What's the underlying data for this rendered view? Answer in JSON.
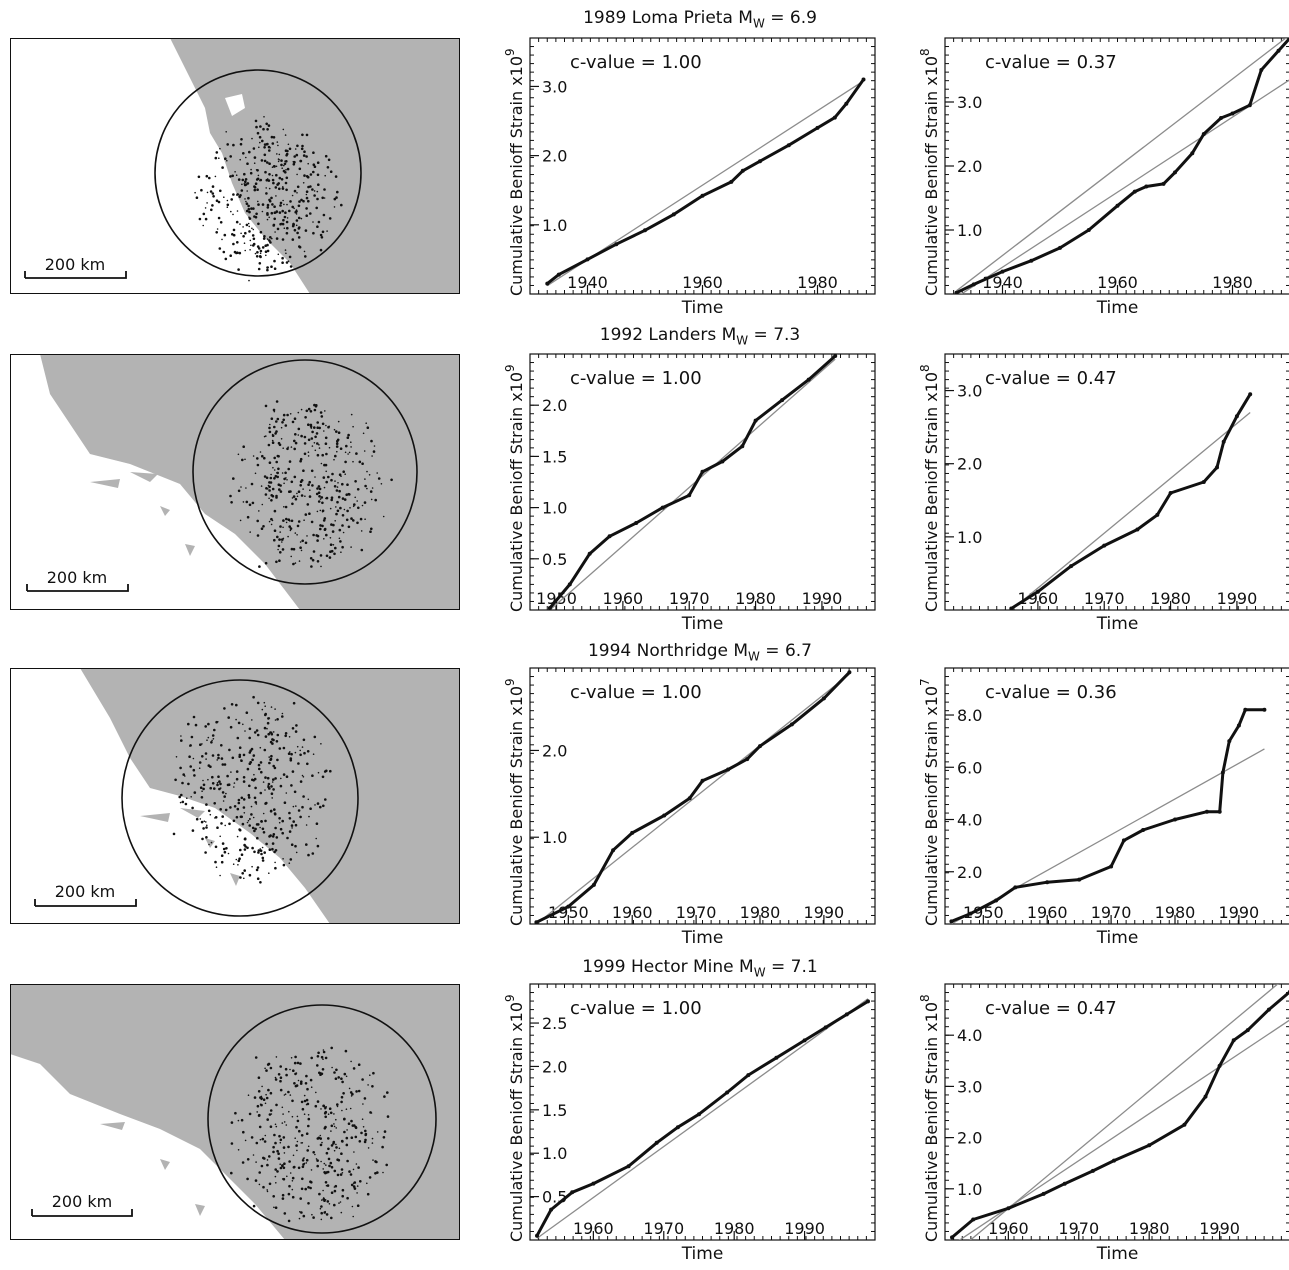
{
  "rows": [
    {
      "title_main": "1989 Loma Prieta M",
      "title_sub": "W",
      "title_tail": " = 6.9"
    },
    {
      "title_main": "1992 Landers M",
      "title_sub": "W",
      "title_tail": " = 7.3"
    },
    {
      "title_main": "1994 Northridge M",
      "title_sub": "W",
      "title_tail": " = 6.7"
    },
    {
      "title_main": "1999 Hector Mine M",
      "title_sub": "W",
      "title_tail": " = 7.1"
    }
  ],
  "scale_bar_label": "200 km",
  "colors": {
    "land": "#b3b3b3",
    "sea": "#ffffff",
    "data": "#111111",
    "fit": "#8c8c8c"
  },
  "chart_data": [
    {
      "type": "line",
      "row": 0,
      "title": "1989 Loma Prieta MW = 6.9",
      "annotation": "c-value = 1.00",
      "xlabel": "Time",
      "ylabel": "Cumulative Benioff Strain x10",
      "ylabel_exp": "9",
      "xlim": [
        1930,
        1990
      ],
      "ylim": [
        0,
        3.7
      ],
      "xticks": [
        1940,
        1960,
        1980
      ],
      "yticks": [
        1.0,
        2.0,
        3.0
      ],
      "series": [
        {
          "x": [
            1933,
            1935,
            1940,
            1945,
            1950,
            1955,
            1960,
            1965,
            1967,
            1970,
            1975,
            1980,
            1983,
            1985,
            1988
          ],
          "y": [
            0.15,
            0.28,
            0.5,
            0.72,
            0.92,
            1.15,
            1.42,
            1.62,
            1.78,
            1.92,
            2.15,
            2.4,
            2.55,
            2.75,
            3.1
          ]
        }
      ],
      "fit": {
        "x": [
          1933,
          1988
        ],
        "y": [
          0.12,
          3.08
        ]
      }
    },
    {
      "type": "line",
      "row": 0,
      "annotation": "c-value = 0.37",
      "xlabel": "Time",
      "ylabel": "Cumulative Benioff Strain x10",
      "ylabel_exp": "8",
      "xlim": [
        1930,
        1990
      ],
      "ylim": [
        0,
        4.0
      ],
      "xticks": [
        1940,
        1960,
        1980
      ],
      "yticks": [
        1.0,
        2.0,
        3.0
      ],
      "series": [
        {
          "x": [
            1932,
            1935,
            1940,
            1945,
            1950,
            1955,
            1960,
            1963,
            1965,
            1968,
            1970,
            1973,
            1975,
            1978,
            1980,
            1983,
            1985,
            1988,
            1990
          ],
          "y": [
            0.02,
            0.15,
            0.35,
            0.52,
            0.72,
            1.0,
            1.38,
            1.6,
            1.68,
            1.72,
            1.9,
            2.2,
            2.5,
            2.75,
            2.82,
            2.95,
            3.5,
            3.8,
            4.0
          ]
        }
      ],
      "fit": {
        "x": [
          1932,
          1990
        ],
        "y": [
          -0.05,
          3.35
        ]
      },
      "fit2": {
        "x": [
          1932,
          1990
        ],
        "y": [
          0.05,
          4.05
        ]
      }
    },
    {
      "type": "line",
      "row": 1,
      "title": "1992 Landers MW = 7.3",
      "annotation": "c-value = 1.00",
      "xlabel": "Time",
      "ylabel": "Cumulative Benioff Strain x10",
      "ylabel_exp": "9",
      "xlim": [
        1946,
        1998
      ],
      "ylim": [
        0,
        2.5
      ],
      "xticks": [
        1950,
        1960,
        1970,
        1980,
        1990
      ],
      "yticks": [
        0.5,
        1.0,
        1.5,
        2.0
      ],
      "series": [
        {
          "x": [
            1949,
            1952,
            1955,
            1958,
            1962,
            1966,
            1970,
            1972,
            1975,
            1978,
            1980,
            1984,
            1988,
            1992
          ],
          "y": [
            0.02,
            0.25,
            0.55,
            0.72,
            0.85,
            1.0,
            1.12,
            1.35,
            1.45,
            1.6,
            1.85,
            2.05,
            2.25,
            2.48
          ]
        }
      ],
      "fit": {
        "x": [
          1949,
          1992
        ],
        "y": [
          0.0,
          2.45
        ]
      }
    },
    {
      "type": "line",
      "row": 1,
      "annotation": "c-value = 0.47",
      "xlabel": "Time",
      "ylabel": "Cumulative Benioff Strain x10",
      "ylabel_exp": "8",
      "xlim": [
        1946,
        1998
      ],
      "ylim": [
        0,
        3.5
      ],
      "xticks": [
        1960,
        1970,
        1980,
        1990
      ],
      "yticks": [
        1.0,
        2.0,
        3.0
      ],
      "series": [
        {
          "x": [
            1956,
            1960,
            1965,
            1970,
            1975,
            1978,
            1980,
            1985,
            1987,
            1988,
            1990,
            1992
          ],
          "y": [
            0.02,
            0.25,
            0.6,
            0.88,
            1.1,
            1.3,
            1.6,
            1.75,
            1.95,
            2.3,
            2.65,
            2.95
          ]
        }
      ],
      "fit": {
        "x": [
          1956,
          1992
        ],
        "y": [
          0.0,
          2.7
        ]
      }
    },
    {
      "type": "line",
      "row": 2,
      "title": "1994 Northridge MW = 6.7",
      "annotation": "c-value = 1.00",
      "xlabel": "Time",
      "ylabel": "Cumulative Benioff Strain x10",
      "ylabel_exp": "9",
      "xlim": [
        1944,
        1998
      ],
      "ylim": [
        0,
        2.95
      ],
      "xticks": [
        1950,
        1960,
        1970,
        1980,
        1990
      ],
      "yticks": [
        1.0,
        2.0
      ],
      "series": [
        {
          "x": [
            1945,
            1950,
            1954,
            1957,
            1960,
            1965,
            1969,
            1971,
            1975,
            1978,
            1980,
            1985,
            1990,
            1994
          ],
          "y": [
            0.02,
            0.2,
            0.45,
            0.85,
            1.05,
            1.25,
            1.45,
            1.65,
            1.78,
            1.9,
            2.05,
            2.3,
            2.6,
            2.9
          ]
        }
      ],
      "fit": {
        "x": [
          1945,
          1994
        ],
        "y": [
          0.0,
          2.88
        ]
      }
    },
    {
      "type": "line",
      "row": 2,
      "annotation": "c-value = 0.36",
      "xlabel": "Time",
      "ylabel": "Cumulative Benioff Strain x10",
      "ylabel_exp": "7",
      "xlim": [
        1944,
        1998
      ],
      "ylim": [
        0,
        9.8
      ],
      "xticks": [
        1950,
        1960,
        1970,
        1980,
        1990
      ],
      "yticks": [
        2.0,
        4.0,
        6.0,
        8.0
      ],
      "series": [
        {
          "x": [
            1945,
            1948,
            1952,
            1955,
            1960,
            1965,
            1970,
            1972,
            1975,
            1980,
            1985,
            1987,
            1987.5,
            1988.5,
            1990,
            1991,
            1994
          ],
          "y": [
            0.1,
            0.4,
            0.9,
            1.4,
            1.6,
            1.7,
            2.2,
            3.2,
            3.6,
            4.0,
            4.3,
            4.3,
            5.8,
            7.0,
            7.6,
            8.2,
            8.2
          ]
        }
      ],
      "fit": {
        "x": [
          1945,
          1994
        ],
        "y": [
          0.0,
          6.7
        ]
      }
    },
    {
      "type": "line",
      "row": 3,
      "title": "1999 Hector Mine MW = 7.1",
      "annotation": "c-value = 1.00",
      "xlabel": "Time",
      "ylabel": "Cumulative Benioff Strain x10",
      "ylabel_exp": "9",
      "xlim": [
        1951,
        2000
      ],
      "ylim": [
        0,
        2.95
      ],
      "xticks": [
        1960,
        1970,
        1980,
        1990
      ],
      "yticks": [
        0.5,
        1.0,
        1.5,
        2.0,
        2.5
      ],
      "series": [
        {
          "x": [
            1952,
            1954,
            1957,
            1960,
            1965,
            1969,
            1972,
            1975,
            1979,
            1982,
            1986,
            1990,
            1993,
            1996,
            1999
          ],
          "y": [
            0.05,
            0.35,
            0.55,
            0.65,
            0.85,
            1.12,
            1.3,
            1.45,
            1.7,
            1.9,
            2.1,
            2.3,
            2.45,
            2.6,
            2.75
          ]
        }
      ],
      "fit": {
        "x": [
          1952,
          1999
        ],
        "y": [
          0.02,
          2.78
        ]
      }
    },
    {
      "type": "line",
      "row": 3,
      "annotation": "c-value = 0.47",
      "xlabel": "Time",
      "ylabel": "Cumulative Benioff Strain x10",
      "ylabel_exp": "8",
      "xlim": [
        1951,
        2000
      ],
      "ylim": [
        0,
        5.0
      ],
      "xticks": [
        1960,
        1970,
        1980,
        1990
      ],
      "yticks": [
        1.0,
        2.0,
        3.0,
        4.0
      ],
      "series": [
        {
          "x": [
            1952,
            1955,
            1960,
            1965,
            1968,
            1972,
            1975,
            1980,
            1985,
            1988,
            1990,
            1992,
            1994,
            1997,
            2000
          ],
          "y": [
            0.05,
            0.4,
            0.62,
            0.9,
            1.1,
            1.35,
            1.55,
            1.85,
            2.25,
            2.8,
            3.4,
            3.9,
            4.1,
            4.5,
            4.85
          ]
        }
      ],
      "fit": {
        "x": [
          1952,
          2000
        ],
        "y": [
          -0.1,
          4.3
        ]
      },
      "fit2": {
        "x": [
          1952,
          2000
        ],
        "y": [
          -0.3,
          5.2
        ]
      }
    }
  ]
}
